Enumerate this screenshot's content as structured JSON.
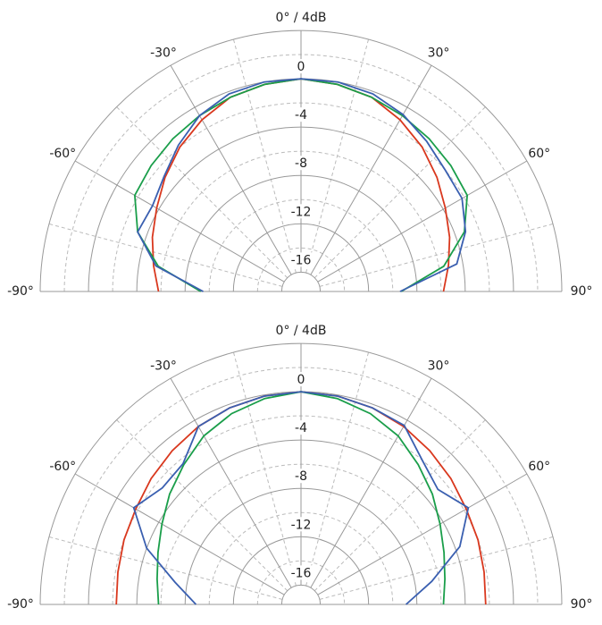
{
  "chart_data": [
    {
      "type": "polar",
      "title": "0° / 4dB",
      "theta": [
        -90,
        -80,
        -70,
        -60,
        -50,
        -40,
        -30,
        -20,
        -10,
        0,
        10,
        20,
        30,
        40,
        50,
        60,
        70,
        80,
        90
      ],
      "rlim": [
        -17.6,
        4
      ],
      "rticks": [
        -16,
        -12,
        -8,
        -4,
        0
      ],
      "thetaticks": [
        {
          "value": -90,
          "label": "-90°"
        },
        {
          "value": -60,
          "label": "-60°"
        },
        {
          "value": -30,
          "label": "-30°"
        },
        {
          "value": 30,
          "label": "30°"
        },
        {
          "value": 60,
          "label": "60°"
        },
        {
          "value": 90,
          "label": "90°"
        }
      ],
      "grid": true,
      "series": [
        {
          "color": "#d9381e",
          "values": [
            -5.8,
            -5.2,
            -4.5,
            -3.8,
            -2.9,
            -2,
            -1.2,
            -0.5,
            -0.2,
            0,
            -0.2,
            -0.5,
            -1.2,
            -2,
            -2.9,
            -3.8,
            -4.5,
            -5.2,
            -5.8
          ]
        },
        {
          "color": "#1a9e4a",
          "values": [
            -9.3,
            -5.6,
            -3.2,
            -1.7,
            -1.4,
            -1.1,
            -0.8,
            -0.5,
            -0.2,
            0,
            -0.2,
            -0.5,
            -0.8,
            -1.1,
            -1.4,
            -1.7,
            -3.2,
            -5.6,
            -9.3
          ]
        },
        {
          "color": "#3a5fb0",
          "values": [
            -9.5,
            -5.4,
            -3.2,
            -3.4,
            -2.8,
            -1.8,
            -0.8,
            -0.2,
            0,
            0,
            0,
            -0.2,
            -0.7,
            -1.4,
            -2,
            -2.2,
            -3.1,
            -4.5,
            -9.4
          ]
        }
      ]
    },
    {
      "type": "polar",
      "title": "0° / 4dB",
      "theta": [
        -90,
        -80,
        -70,
        -60,
        -50,
        -40,
        -30,
        -20,
        -10,
        0,
        10,
        20,
        30,
        40,
        50,
        60,
        70,
        80,
        90
      ],
      "rlim": [
        -17.6,
        4
      ],
      "rticks": [
        -16,
        -12,
        -8,
        -4,
        0
      ],
      "thetaticks": [
        {
          "value": -90,
          "label": "-90°"
        },
        {
          "value": -60,
          "label": "-60°"
        },
        {
          "value": -30,
          "label": "-30°"
        },
        {
          "value": 30,
          "label": "30°"
        },
        {
          "value": 60,
          "label": "60°"
        },
        {
          "value": 90,
          "label": "90°"
        }
      ],
      "grid": true,
      "series": [
        {
          "color": "#d9381e",
          "values": [
            -2.3,
            -2.2,
            -2,
            -1.8,
            -1.4,
            -1,
            -0.6,
            -0.3,
            -0.1,
            0,
            -0.1,
            -0.3,
            -0.6,
            -1,
            -1.4,
            -1.8,
            -2,
            -2.2,
            -2.3
          ]
        },
        {
          "color": "#1a9e4a",
          "values": [
            -5.8,
            -5.5,
            -5,
            -4.3,
            -3.4,
            -2.5,
            -1.5,
            -0.8,
            -0.3,
            0,
            -0.3,
            -0.8,
            -1.5,
            -2.5,
            -3.4,
            -4.3,
            -5,
            -5.5,
            -5.8
          ]
        },
        {
          "color": "#3a5fb0",
          "values": [
            -8.9,
            -7,
            -4,
            -1.6,
            -2.6,
            -2.4,
            -0.6,
            -0.3,
            -0.1,
            0,
            -0.1,
            -0.3,
            -0.5,
            -2,
            -2.8,
            -1.6,
            -3.6,
            -6.6,
            -8.9
          ]
        }
      ]
    }
  ]
}
